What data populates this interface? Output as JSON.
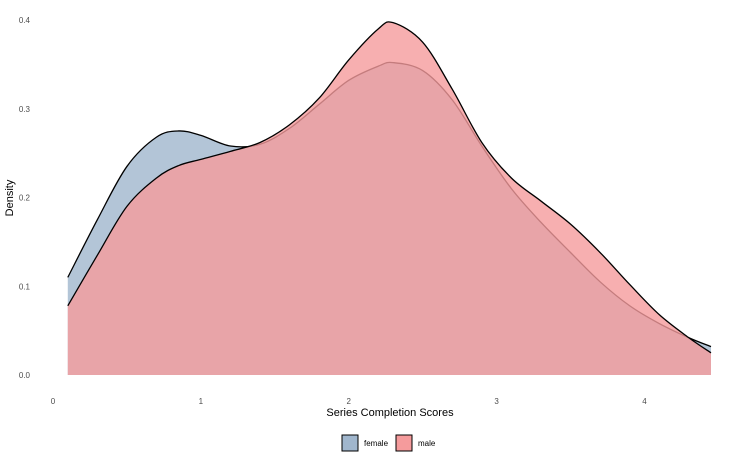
{
  "chart_data": {
    "type": "area",
    "title": "",
    "xlabel": "Series Completion Scores",
    "ylabel": "Density",
    "xlim": [
      0,
      4.45
    ],
    "ylim": [
      0,
      0.4
    ],
    "grid": false,
    "legend_position": "bottom",
    "x_ticks": [
      0,
      1,
      2,
      3,
      4
    ],
    "x_tick_labels": [
      "0",
      "1",
      "2",
      "3",
      "4"
    ],
    "y_ticks": [
      0,
      0.1,
      0.2,
      0.3,
      0.4
    ],
    "y_tick_labels": [
      "0.0",
      "0.1",
      "0.2",
      "0.3",
      "0.4"
    ],
    "series": [
      {
        "name": "female",
        "color": "#a0b6cd",
        "x": [
          0.1,
          0.3,
          0.5,
          0.7,
          0.85,
          1.0,
          1.2,
          1.4,
          1.6,
          1.8,
          2.0,
          2.2,
          2.3,
          2.5,
          2.7,
          2.9,
          3.1,
          3.3,
          3.5,
          3.7,
          3.9,
          4.1,
          4.3,
          4.45
        ],
        "y": [
          0.11,
          0.175,
          0.235,
          0.268,
          0.275,
          0.27,
          0.258,
          0.26,
          0.278,
          0.305,
          0.332,
          0.348,
          0.352,
          0.343,
          0.31,
          0.258,
          0.21,
          0.172,
          0.138,
          0.105,
          0.078,
          0.058,
          0.042,
          0.032
        ]
      },
      {
        "name": "male",
        "color": "#f59b9c",
        "x": [
          0.1,
          0.3,
          0.5,
          0.7,
          0.85,
          1.0,
          1.2,
          1.4,
          1.6,
          1.8,
          2.0,
          2.2,
          2.3,
          2.5,
          2.7,
          2.9,
          3.1,
          3.3,
          3.5,
          3.7,
          3.9,
          4.1,
          4.3,
          4.45
        ],
        "y": [
          0.078,
          0.135,
          0.19,
          0.222,
          0.236,
          0.243,
          0.252,
          0.262,
          0.282,
          0.312,
          0.355,
          0.39,
          0.397,
          0.375,
          0.322,
          0.262,
          0.222,
          0.196,
          0.17,
          0.138,
          0.102,
          0.068,
          0.042,
          0.025
        ]
      }
    ]
  }
}
